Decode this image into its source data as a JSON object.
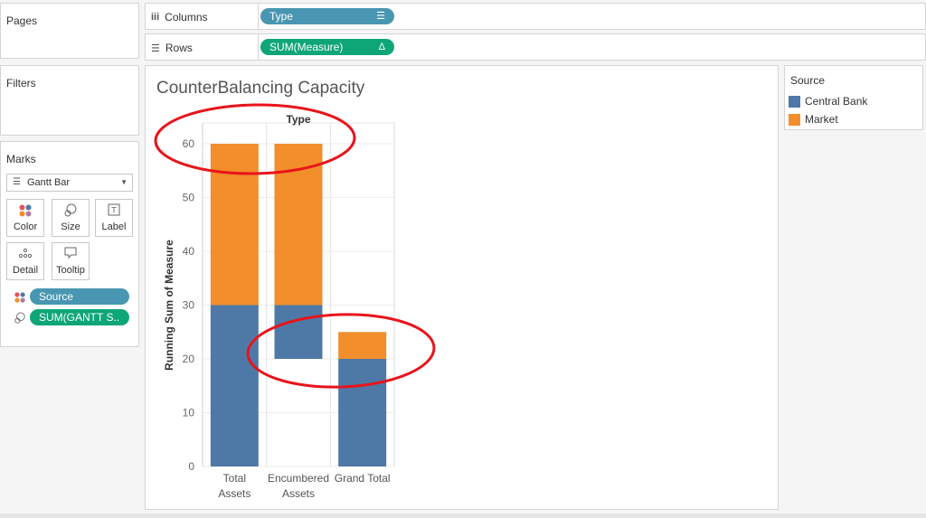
{
  "pages": {
    "title": "Pages"
  },
  "filters": {
    "title": "Filters"
  },
  "marks": {
    "title": "Marks",
    "mark_type": "Gantt Bar",
    "buttons": [
      "Color",
      "Size",
      "Label",
      "Detail",
      "Tooltip"
    ],
    "pills": [
      {
        "label": "Source",
        "kind": "color"
      },
      {
        "label": "SUM(GANTT S..",
        "kind": "size"
      }
    ]
  },
  "shelves": {
    "columns": {
      "label": "Columns",
      "pill": "Type"
    },
    "rows": {
      "label": "Rows",
      "pill": "SUM(Measure)"
    }
  },
  "legend": {
    "title": "Source",
    "items": [
      {
        "label": "Central Bank",
        "color": "#4e79a7"
      },
      {
        "label": "Market",
        "color": "#f28e2b"
      }
    ]
  },
  "chart_data": {
    "type": "bar",
    "title": "CounterBalancing Capacity",
    "header": "Type",
    "ylabel": "Running Sum of Measure",
    "ylim": [
      0,
      60
    ],
    "yticks": [
      0,
      10,
      20,
      30,
      40,
      50,
      60
    ],
    "categories": [
      "Total Assets",
      "Encumbered Assets",
      "Grand Total"
    ],
    "category_lines": [
      [
        "Total",
        "Assets"
      ],
      [
        "Encumbered",
        "Assets"
      ],
      [
        "Grand Total"
      ]
    ],
    "series": [
      {
        "name": "Central Bank",
        "color": "#4e79a7",
        "segments": [
          {
            "from": 0,
            "to": 30
          },
          {
            "from": 20,
            "to": 30
          },
          {
            "from": 0,
            "to": 20
          }
        ]
      },
      {
        "name": "Market",
        "color": "#f28e2b",
        "segments": [
          {
            "from": 30,
            "to": 60
          },
          {
            "from": 30,
            "to": 60
          },
          {
            "from": 20,
            "to": 25
          }
        ]
      }
    ],
    "grid": true
  },
  "annotations": {
    "color": "#e8141b",
    "shape": "ellipse",
    "count": 2
  }
}
